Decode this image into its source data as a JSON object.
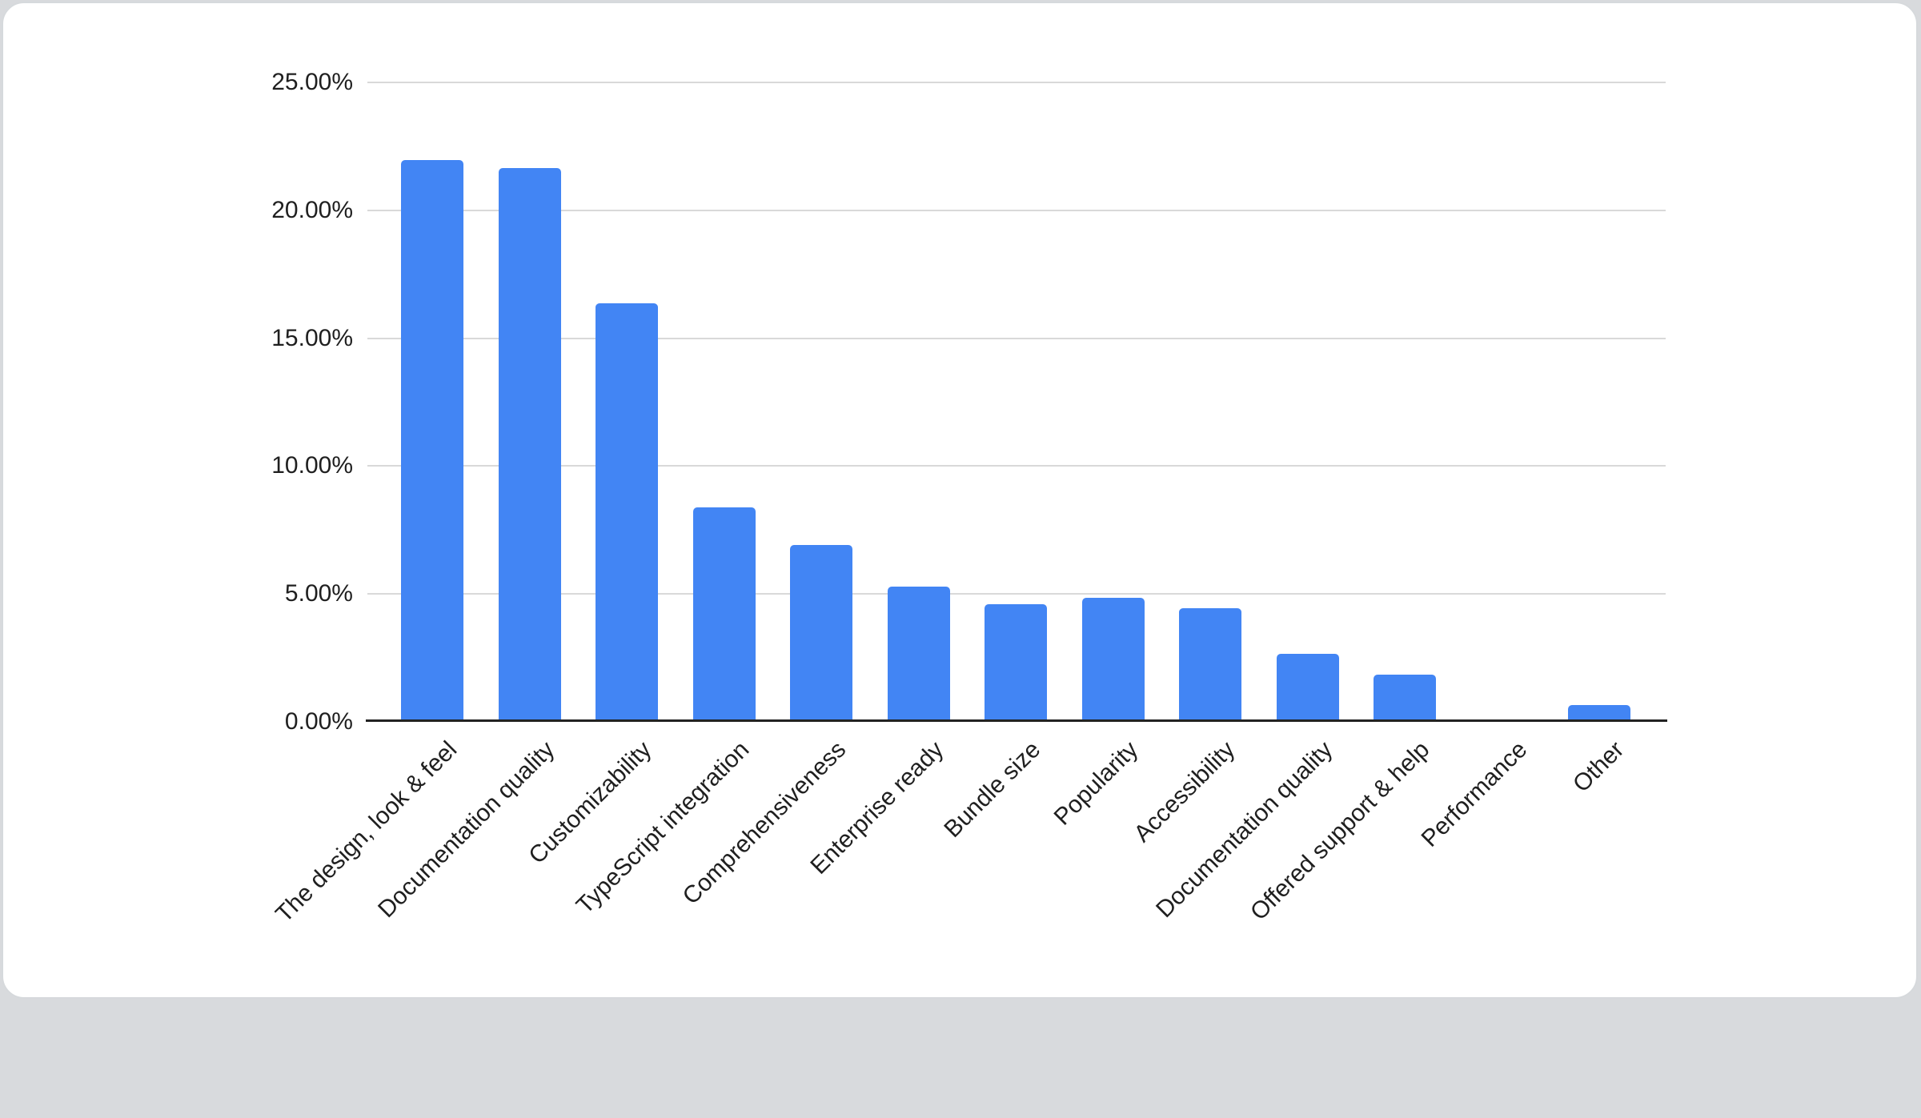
{
  "chart_data": {
    "type": "bar",
    "title": "",
    "xlabel": "",
    "ylabel": "",
    "categories": [
      "The design, look & feel",
      "Documentation quality",
      "Customizability",
      "TypeScript integration",
      "Comprehensiveness",
      "Enterprise ready",
      "Bundle size",
      "Popularity",
      "Accessibility",
      "Documentation quality",
      "Offered support & help",
      "Performance",
      "Other"
    ],
    "values": [
      21.95,
      21.65,
      16.35,
      8.4,
      6.9,
      5.3,
      4.6,
      4.85,
      4.45,
      2.65,
      1.85,
      0.1,
      0.65
    ],
    "ylim": [
      0,
      25
    ],
    "y_ticks": [
      {
        "value": 0,
        "label": "0.00%"
      },
      {
        "value": 5,
        "label": "5.00%"
      },
      {
        "value": 10,
        "label": "10.00%"
      },
      {
        "value": 15,
        "label": "15.00%"
      },
      {
        "value": 20,
        "label": "20.00%"
      },
      {
        "value": 25,
        "label": "25.00%"
      }
    ],
    "grid": true,
    "legend_position": "none",
    "x_label_rotation_deg": 45,
    "colors": {
      "bar": "#4285f4",
      "gridline": "#d9d9d9",
      "axis_line": "#222222",
      "tick_label": "#1f1f1f",
      "card_background": "#ffffff",
      "card_border": "#d6d9dc",
      "page_background": "#d8dadd"
    }
  }
}
